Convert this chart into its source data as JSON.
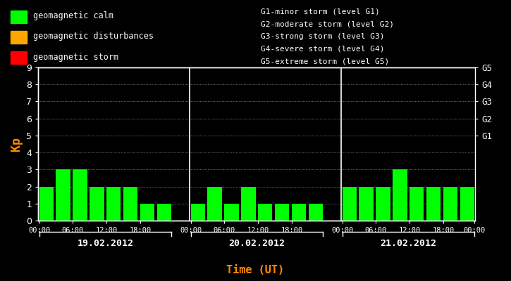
{
  "background_color": "#000000",
  "plot_bg_color": "#000000",
  "bar_color": "#00ff00",
  "text_color": "#ffffff",
  "axis_label_color": "#ff8c00",
  "day1_label": "19.02.2012",
  "day2_label": "20.02.2012",
  "day3_label": "21.02.2012",
  "day1_values": [
    2,
    3,
    3,
    2,
    2,
    2,
    1,
    1
  ],
  "day2_values": [
    1,
    2,
    1,
    2,
    1,
    1,
    1,
    1
  ],
  "day3_values": [
    2,
    2,
    2,
    3,
    2,
    2,
    2,
    2
  ],
  "ylabel": "Kp",
  "xlabel": "Time (UT)",
  "ylim": [
    0,
    9
  ],
  "yticks": [
    0,
    1,
    2,
    3,
    4,
    5,
    6,
    7,
    8,
    9
  ],
  "legend_items": [
    {
      "label": "geomagnetic calm",
      "color": "#00ff00"
    },
    {
      "label": "geomagnetic disturbances",
      "color": "#ffa500"
    },
    {
      "label": "geomagnetic storm",
      "color": "#ff0000"
    }
  ],
  "right_info": [
    "G1-minor storm (level G1)",
    "G2-moderate storm (level G2)",
    "G3-strong storm (level G3)",
    "G4-severe storm (level G4)",
    "G5-extreme storm (level G5)"
  ],
  "right_axis_labels": [
    "G1",
    "G2",
    "G3",
    "G4",
    "G5"
  ],
  "right_axis_ticks": [
    5,
    6,
    7,
    8,
    9
  ]
}
